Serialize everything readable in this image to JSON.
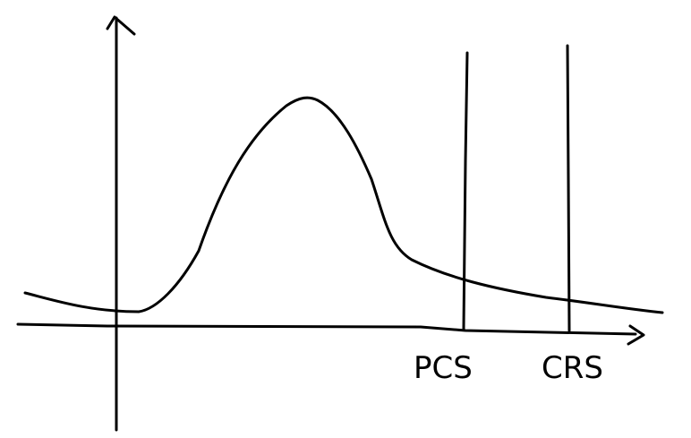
{
  "diagram": {
    "labels": {
      "pcs": "PCS",
      "crs": "CRS"
    },
    "colors": {
      "ink": "#000000",
      "background": "#ffffff"
    }
  }
}
